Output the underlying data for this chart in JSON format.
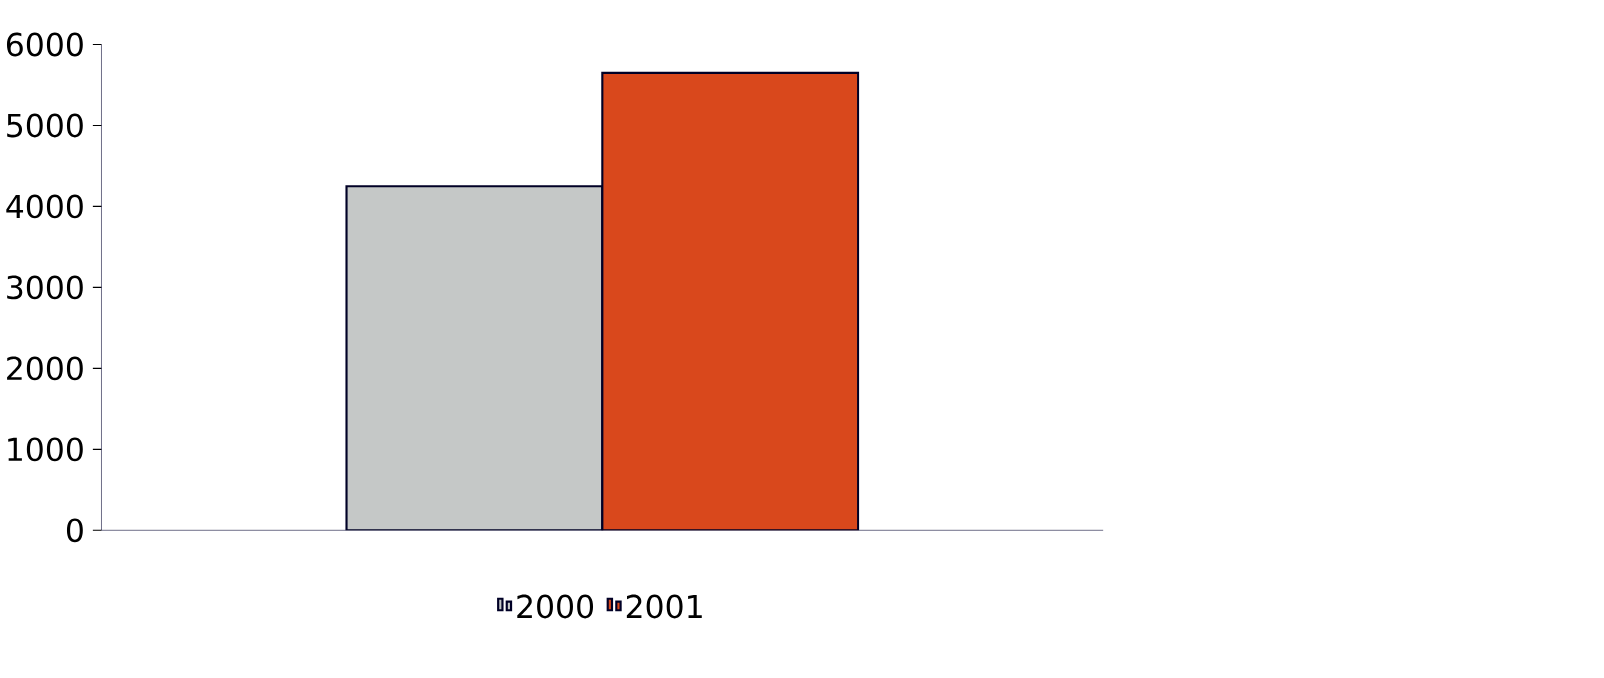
{
  "chart_data": {
    "type": "bar",
    "categories": [
      null
    ],
    "series": [
      {
        "name": "2000",
        "color": "#c5c8c7",
        "values": [
          4250
        ]
      },
      {
        "name": "2001",
        "color": "#d9481c",
        "values": [
          5650
        ]
      }
    ],
    "ylim": [
      0,
      6000
    ],
    "yticks": [
      0,
      1000,
      2000,
      3000,
      4000,
      5000,
      6000
    ],
    "grid": false,
    "legend": "bottom"
  }
}
